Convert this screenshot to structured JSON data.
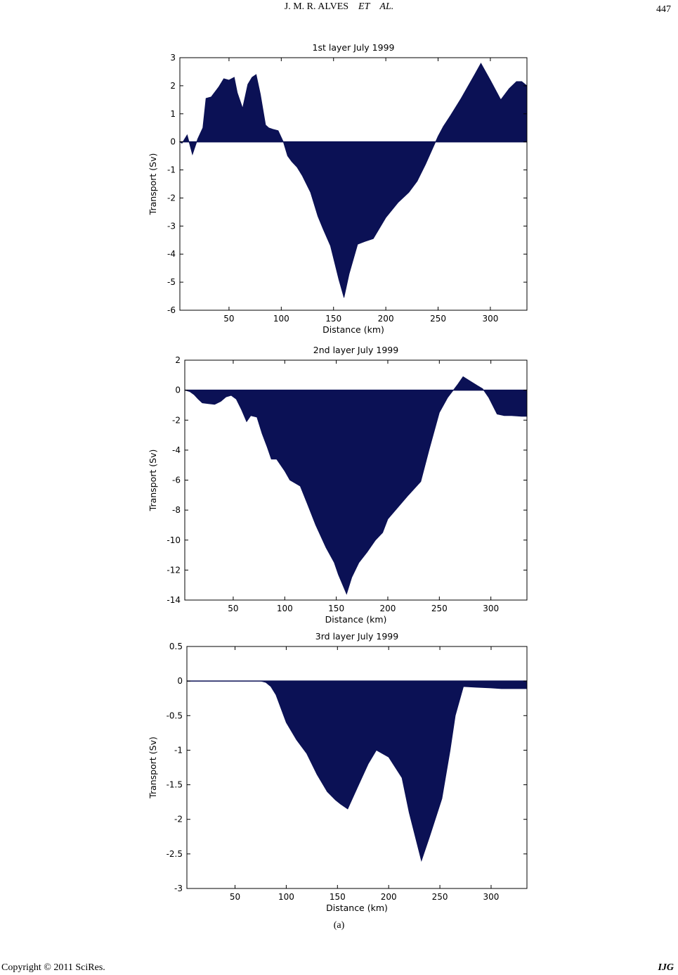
{
  "header": {
    "authors_plain": "J. M. R. ALVES",
    "authors_italic1": "ET",
    "authors_italic2": "AL.",
    "page_number": "447"
  },
  "footer": {
    "copyright": "Copyright © 2011 SciRes.",
    "journal": "IJG"
  },
  "figure_label": "(a)",
  "chart_data": [
    {
      "type": "area",
      "title": "1st layer July 1999",
      "xlabel": "Distance (km)",
      "ylabel": "Transport (Sv)",
      "xlim": [
        3,
        335
      ],
      "ylim": [
        -6,
        3
      ],
      "xticks": [
        50,
        100,
        150,
        200,
        250,
        300
      ],
      "yticks": [
        3,
        2,
        1,
        0,
        -1,
        -2,
        -3,
        -4,
        -5,
        -6
      ],
      "fill_color": "#0b1155",
      "x": [
        3,
        5,
        10,
        15,
        20,
        25,
        28,
        33,
        40,
        45,
        50,
        55,
        58,
        63,
        68,
        72,
        76,
        80,
        85,
        88,
        92,
        97,
        102,
        106,
        110,
        115,
        120,
        128,
        135,
        140,
        147,
        155,
        160,
        165,
        173,
        180,
        188,
        200,
        212,
        222,
        230,
        238,
        244,
        250,
        255,
        262,
        272,
        285,
        291,
        300,
        310,
        318,
        325,
        330,
        335
      ],
      "values": [
        0,
        -0.05,
        0.25,
        -0.45,
        0.1,
        0.5,
        1.55,
        1.6,
        1.95,
        2.25,
        2.2,
        2.3,
        1.75,
        1.2,
        2.05,
        2.3,
        2.4,
        1.7,
        0.6,
        0.5,
        0.45,
        0.4,
        0,
        -0.5,
        -0.7,
        -0.9,
        -1.2,
        -1.8,
        -2.65,
        -3.1,
        -3.7,
        -4.9,
        -5.55,
        -4.7,
        -3.65,
        -3.55,
        -3.45,
        -2.7,
        -2.15,
        -1.8,
        -1.4,
        -0.8,
        -0.3,
        0.2,
        0.55,
        0.95,
        1.55,
        2.4,
        2.8,
        2.2,
        1.5,
        1.9,
        2.15,
        2.15,
        2
      ]
    },
    {
      "type": "area",
      "title": "2nd layer July 1999",
      "xlabel": "Distance (km)",
      "ylabel": "Transport (Sv)",
      "xlim": [
        3,
        335
      ],
      "ylim": [
        -14,
        2
      ],
      "xticks": [
        50,
        100,
        150,
        200,
        250,
        300
      ],
      "yticks": [
        2,
        0,
        -2,
        -4,
        -6,
        -8,
        -10,
        -12,
        -14
      ],
      "fill_color": "#0b1155",
      "x": [
        3,
        8,
        12,
        16,
        20,
        26,
        32,
        38,
        43,
        48,
        53,
        58,
        63,
        67,
        73,
        78,
        83,
        87,
        92,
        100,
        105,
        110,
        115,
        122,
        130,
        140,
        148,
        152,
        160,
        165,
        172,
        180,
        188,
        195,
        200,
        210,
        220,
        232,
        240,
        250,
        258,
        268,
        273,
        280,
        287,
        292,
        298,
        306,
        313,
        320,
        330,
        335
      ],
      "values": [
        0,
        -0.1,
        -0.3,
        -0.6,
        -0.85,
        -0.9,
        -0.95,
        -0.75,
        -0.45,
        -0.35,
        -0.6,
        -1.3,
        -2.1,
        -1.7,
        -1.8,
        -2.9,
        -3.8,
        -4.6,
        -4.6,
        -5.4,
        -6.0,
        -6.2,
        -6.4,
        -7.6,
        -9.0,
        -10.5,
        -11.5,
        -12.3,
        -13.6,
        -12.5,
        -11.5,
        -10.8,
        -10,
        -9.5,
        -8.6,
        -7.8,
        -7.0,
        -6.1,
        -4.0,
        -1.5,
        -0.5,
        0.4,
        0.9,
        0.6,
        0.3,
        0.1,
        -0.5,
        -1.6,
        -1.7,
        -1.7,
        -1.75,
        -1.75
      ]
    },
    {
      "type": "area",
      "title": "3rd layer July 1999",
      "xlabel": "Distance (km)",
      "ylabel": "Transport (Sv)",
      "xlim": [
        3,
        335
      ],
      "ylim": [
        -3,
        0.5
      ],
      "xticks": [
        50,
        100,
        150,
        200,
        250,
        300
      ],
      "yticks": [
        0.5,
        0,
        -0.5,
        -1,
        -1.5,
        -2,
        -2.5,
        -3
      ],
      "fill_color": "#0b1155",
      "x": [
        3,
        20,
        40,
        60,
        75,
        80,
        85,
        90,
        95,
        100,
        110,
        120,
        130,
        140,
        148,
        153,
        160,
        167,
        180,
        188,
        200,
        213,
        220,
        232,
        240,
        252,
        260,
        265,
        273,
        285,
        300,
        310,
        320,
        330,
        335
      ],
      "values": [
        0,
        0,
        0,
        0,
        0,
        -0.02,
        -0.08,
        -0.2,
        -0.4,
        -0.6,
        -0.85,
        -1.05,
        -1.35,
        -1.6,
        -1.72,
        -1.78,
        -1.85,
        -1.62,
        -1.2,
        -1.0,
        -1.1,
        -1.4,
        -1.9,
        -2.6,
        -2.25,
        -1.7,
        -1.0,
        -0.5,
        -0.08,
        -0.09,
        -0.1,
        -0.11,
        -0.11,
        -0.11,
        -0.11
      ]
    }
  ]
}
